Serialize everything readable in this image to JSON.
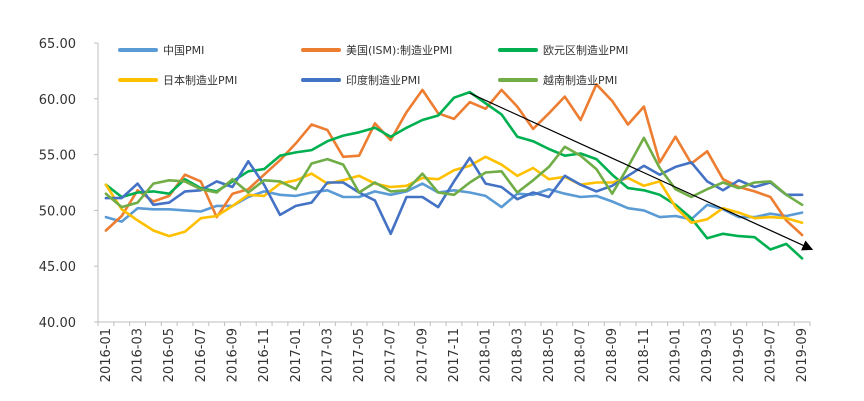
{
  "chart_data": {
    "type": "line",
    "title": "",
    "xlabel": "",
    "ylabel": "",
    "ylim": [
      40,
      65
    ],
    "y_ticks": [
      "40.00",
      "45.00",
      "50.00",
      "55.00",
      "60.00",
      "65.00"
    ],
    "grid": false,
    "legend_position": "top",
    "x": [
      "2016-01",
      "2016-02",
      "2016-03",
      "2016-04",
      "2016-05",
      "2016-06",
      "2016-07",
      "2016-08",
      "2016-09",
      "2016-10",
      "2016-11",
      "2016-12",
      "2017-01",
      "2017-02",
      "2017-03",
      "2017-04",
      "2017-05",
      "2017-06",
      "2017-07",
      "2017-08",
      "2017-09",
      "2017-10",
      "2017-11",
      "2017-12",
      "2018-01",
      "2018-02",
      "2018-03",
      "2018-04",
      "2018-05",
      "2018-06",
      "2018-07",
      "2018-08",
      "2018-09",
      "2018-10",
      "2018-11",
      "2018-12",
      "2019-01",
      "2019-02",
      "2019-03",
      "2019-04",
      "2019-05",
      "2019-06",
      "2019-07",
      "2019-08",
      "2019-09"
    ],
    "x_tick_labels": [
      "2016-01",
      "2016-03",
      "2016-05",
      "2016-07",
      "2016-09",
      "2016-11",
      "2017-01",
      "2017-03",
      "2017-05",
      "2017-07",
      "2017-09",
      "2017-11",
      "2018-01",
      "2018-03",
      "2018-05",
      "2018-07",
      "2018-09",
      "2018-11",
      "2019-01",
      "2019-03",
      "2019-05",
      "2019-07",
      "2019-09"
    ],
    "series": [
      {
        "name": "中国PMI",
        "color": "#5B9BD5",
        "values": [
          49.4,
          49.0,
          50.2,
          50.1,
          50.1,
          50.0,
          49.9,
          50.4,
          50.4,
          51.2,
          51.7,
          51.4,
          51.3,
          51.6,
          51.8,
          51.2,
          51.2,
          51.7,
          51.4,
          51.7,
          52.4,
          51.6,
          51.8,
          51.6,
          51.3,
          50.3,
          51.5,
          51.4,
          51.9,
          51.5,
          51.2,
          51.3,
          50.8,
          50.2,
          50.0,
          49.4,
          49.5,
          49.2,
          50.5,
          50.1,
          49.4,
          49.4,
          49.7,
          49.5,
          49.8
        ]
      },
      {
        "name": "美国(ISM):制造业PMI",
        "color": "#ED7D31",
        "values": [
          48.2,
          49.5,
          51.8,
          50.8,
          51.3,
          53.2,
          52.6,
          49.4,
          51.5,
          51.9,
          53.2,
          54.5,
          56.0,
          57.7,
          57.2,
          54.8,
          54.9,
          57.8,
          56.3,
          58.8,
          60.8,
          58.7,
          58.2,
          59.7,
          59.1,
          60.8,
          59.3,
          57.3,
          58.7,
          60.2,
          58.1,
          61.3,
          59.8,
          57.7,
          59.3,
          54.3,
          56.6,
          54.2,
          55.3,
          52.8,
          52.1,
          51.7,
          51.2,
          49.1,
          47.8
        ]
      },
      {
        "name": "欧元区制造业PMI",
        "color": "#00B050",
        "values": [
          52.3,
          51.2,
          51.6,
          51.7,
          51.5,
          52.8,
          52.0,
          51.7,
          52.6,
          53.5,
          53.7,
          54.9,
          55.2,
          55.4,
          56.2,
          56.7,
          57.0,
          57.4,
          56.6,
          57.4,
          58.1,
          58.5,
          60.1,
          60.6,
          59.6,
          58.6,
          56.6,
          56.2,
          55.5,
          54.9,
          55.1,
          54.6,
          53.2,
          52.0,
          51.8,
          51.4,
          50.5,
          49.3,
          47.5,
          47.9,
          47.7,
          47.6,
          46.5,
          47.0,
          45.7
        ]
      },
      {
        "name": "日本制造业PMI",
        "color": "#FFC000",
        "values": [
          52.3,
          50.1,
          49.1,
          48.2,
          47.7,
          48.1,
          49.3,
          49.5,
          50.4,
          51.4,
          51.3,
          52.4,
          52.7,
          53.3,
          52.4,
          52.7,
          53.1,
          52.4,
          52.1,
          52.2,
          52.9,
          52.8,
          53.6,
          54.0,
          54.8,
          54.1,
          53.1,
          53.8,
          52.8,
          53.0,
          52.3,
          52.5,
          52.5,
          52.9,
          52.2,
          52.6,
          50.3,
          48.9,
          49.2,
          50.2,
          49.8,
          49.3,
          49.4,
          49.3,
          48.9
        ]
      },
      {
        "name": "印度制造业PMI",
        "color": "#4472C4",
        "values": [
          51.1,
          51.1,
          52.4,
          50.5,
          50.7,
          51.7,
          51.8,
          52.6,
          52.1,
          54.4,
          52.3,
          49.6,
          50.4,
          50.7,
          52.5,
          52.5,
          51.6,
          50.9,
          47.9,
          51.2,
          51.2,
          50.3,
          52.6,
          54.7,
          52.4,
          52.1,
          51.0,
          51.6,
          51.2,
          53.1,
          52.3,
          51.7,
          52.2,
          53.1,
          54.0,
          53.2,
          53.9,
          54.3,
          52.6,
          51.8,
          52.7,
          52.1,
          52.5,
          51.4,
          51.4
        ]
      },
      {
        "name": "越南制造业PMI",
        "color": "#70AD47",
        "values": [
          51.5,
          50.3,
          50.7,
          52.4,
          52.7,
          52.6,
          51.9,
          51.6,
          52.8,
          51.6,
          52.7,
          52.6,
          51.9,
          54.2,
          54.6,
          54.1,
          51.6,
          52.5,
          51.7,
          51.8,
          53.3,
          51.6,
          51.4,
          52.5,
          53.4,
          53.5,
          51.6,
          52.7,
          53.9,
          55.7,
          54.9,
          53.7,
          51.5,
          53.9,
          56.5,
          53.8,
          51.9,
          51.2,
          51.9,
          52.5,
          52.0,
          52.5,
          52.6,
          51.4,
          50.5
        ]
      }
    ],
    "annotations": [
      {
        "type": "trend-arrow",
        "from": {
          "x": "2017-12",
          "y": 60.5
        },
        "to": {
          "x": "2019-09",
          "y": 46.5
        }
      }
    ]
  }
}
